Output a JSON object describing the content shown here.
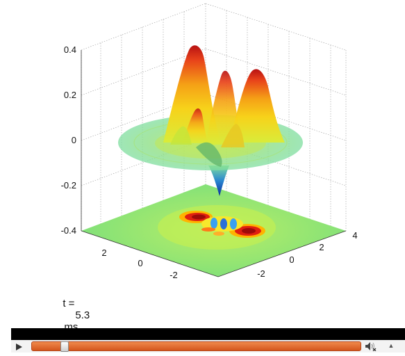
{
  "plot": {
    "z_ticks": [
      "0.4",
      "0.2",
      "0",
      "-0.2",
      "-0.4"
    ],
    "x_ticks": [
      "2",
      "0",
      "-2"
    ],
    "y_ticks": [
      "-2",
      "0",
      "2",
      "4"
    ]
  },
  "time_readout": {
    "label": "t =",
    "value": "5.3",
    "unit": "ms"
  },
  "player": {
    "progress": 0.09,
    "icons": {
      "play": "play-icon",
      "volume": "speaker-muted-icon",
      "expand": "chevron-up-icon"
    }
  }
}
